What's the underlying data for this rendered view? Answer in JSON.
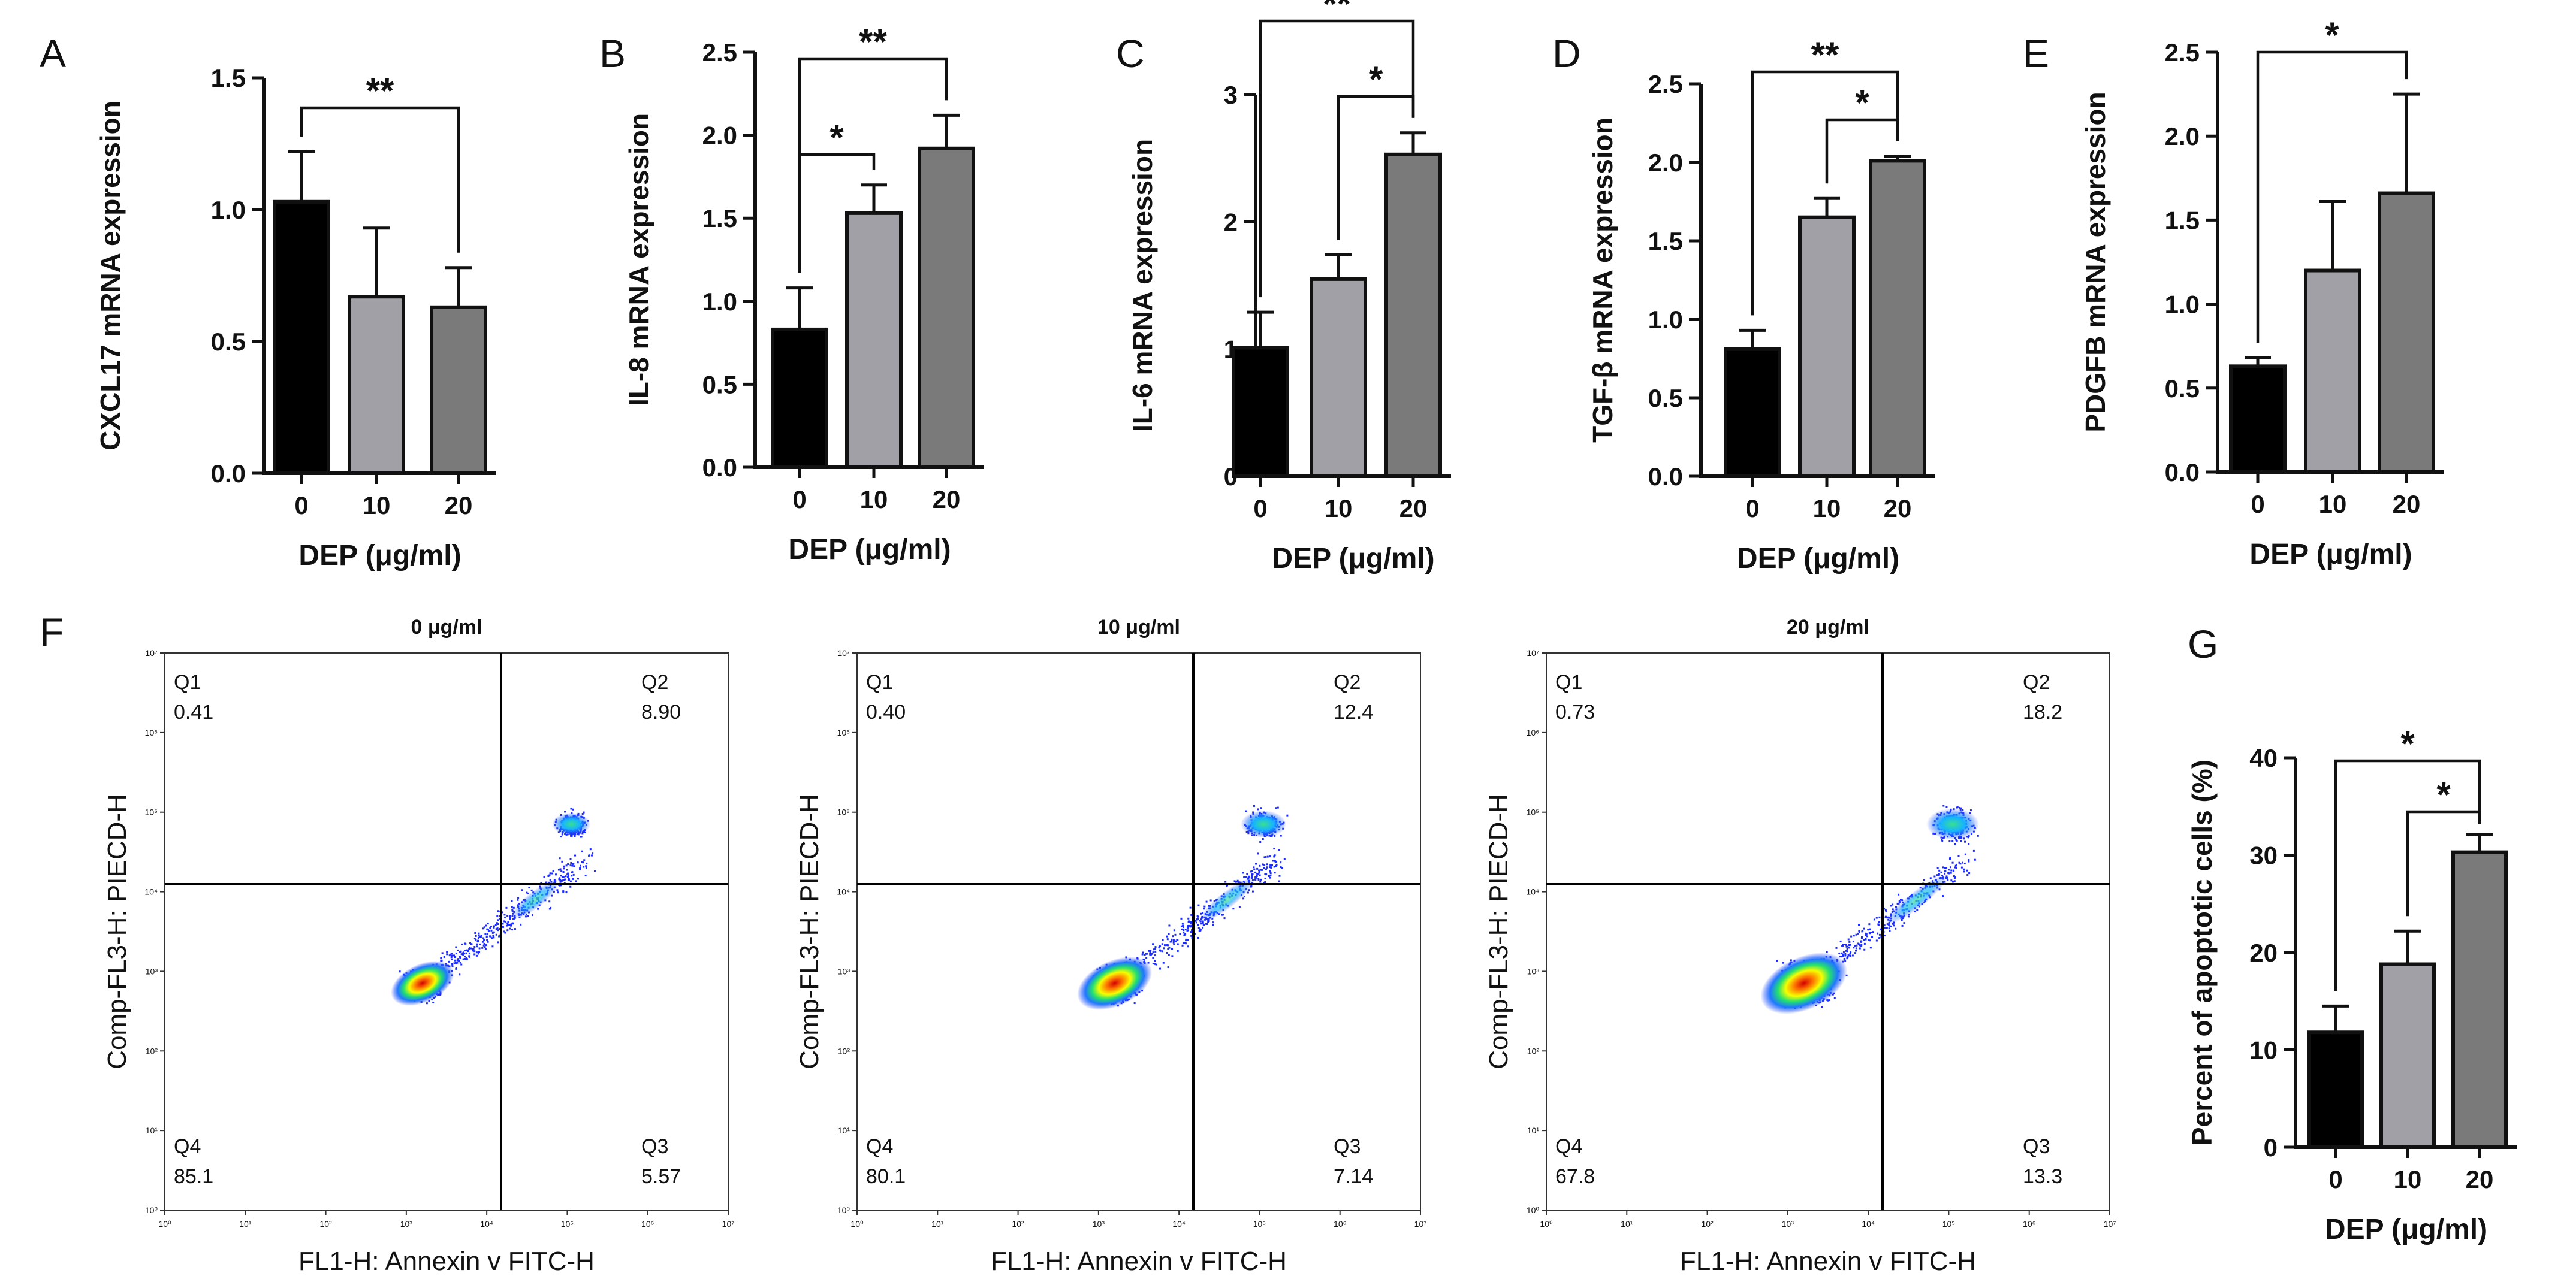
{
  "bar_style": {
    "colors": [
      "#000000",
      "#a0a0a6",
      "#7a7a7a"
    ],
    "axis_color": "#111111"
  },
  "chart_data": [
    {
      "panel": "A",
      "type": "bar",
      "categories": [
        "0",
        "10",
        "20"
      ],
      "values": [
        1.03,
        0.67,
        0.63
      ],
      "errors": [
        0.19,
        0.26,
        0.15
      ],
      "ylabel": "CXCL17 mRNA expression",
      "xlabel": "DEP (μg/ml)",
      "ylim": [
        0,
        1.5
      ],
      "yticks": [
        "0.0",
        "0.5",
        "1.0",
        "1.5"
      ],
      "significance": [
        {
          "from": 0,
          "to": 2,
          "label": "**"
        }
      ]
    },
    {
      "panel": "B",
      "type": "bar",
      "categories": [
        "0",
        "10",
        "20"
      ],
      "values": [
        0.83,
        1.53,
        1.92
      ],
      "errors": [
        0.25,
        0.17,
        0.2
      ],
      "ylabel": "IL-8 mRNA expression",
      "xlabel": "DEP (μg/ml)",
      "ylim": [
        0,
        2.5
      ],
      "yticks": [
        "0.0",
        "0.5",
        "1.0",
        "1.5",
        "2.0",
        "2.5"
      ],
      "significance": [
        {
          "from": 0,
          "to": 1,
          "label": "*"
        },
        {
          "from": 0,
          "to": 2,
          "label": "**"
        }
      ]
    },
    {
      "panel": "C",
      "type": "bar",
      "categories": [
        "0",
        "10",
        "20"
      ],
      "values": [
        1.01,
        1.55,
        2.53
      ],
      "errors": [
        0.28,
        0.19,
        0.17
      ],
      "ylabel": "IL-6 mRNA expression",
      "xlabel": "DEP (μg/ml)",
      "ylim": [
        0,
        3
      ],
      "yticks": [
        "0",
        "1",
        "2",
        "3"
      ],
      "significance": [
        {
          "from": 1,
          "to": 2,
          "label": "*"
        },
        {
          "from": 0,
          "to": 2,
          "label": "**"
        }
      ]
    },
    {
      "panel": "D",
      "type": "bar",
      "categories": [
        "0",
        "10",
        "20"
      ],
      "values": [
        0.81,
        1.65,
        2.01
      ],
      "errors": [
        0.12,
        0.12,
        0.03
      ],
      "ylabel": "TGF-β mRNA expression",
      "xlabel": "DEP (μg/ml)",
      "ylim": [
        0,
        2.5
      ],
      "yticks": [
        "0.0",
        "0.5",
        "1.0",
        "1.5",
        "2.0",
        "2.5"
      ],
      "significance": [
        {
          "from": 1,
          "to": 2,
          "label": "*"
        },
        {
          "from": 0,
          "to": 2,
          "label": "**"
        }
      ]
    },
    {
      "panel": "E",
      "type": "bar",
      "categories": [
        "0",
        "10",
        "20"
      ],
      "values": [
        0.63,
        1.2,
        1.66
      ],
      "errors": [
        0.05,
        0.41,
        0.59
      ],
      "ylabel": "PDGFB mRNA expression",
      "xlabel": "DEP (μg/ml)",
      "ylim": [
        0,
        2.5
      ],
      "yticks": [
        "0.0",
        "0.5",
        "1.0",
        "1.5",
        "2.0",
        "2.5"
      ],
      "significance": [
        {
          "from": 0,
          "to": 2,
          "label": "*"
        }
      ]
    },
    {
      "panel": "F",
      "type": "scatter",
      "plots": [
        {
          "title": "0 μg/ml",
          "quadrants": {
            "Q1": "0.41",
            "Q2": "8.90",
            "Q3": "5.57",
            "Q4": "85.1"
          }
        },
        {
          "title": "10 μg/ml",
          "quadrants": {
            "Q1": "0.40",
            "Q2": "12.4",
            "Q3": "7.14",
            "Q4": "80.1"
          }
        },
        {
          "title": "20 μg/ml",
          "quadrants": {
            "Q1": "0.73",
            "Q2": "18.2",
            "Q3": "13.3",
            "Q4": "67.8"
          }
        }
      ],
      "ylabel": "Comp-FL3-H: PIECD-H",
      "xlabel": "FL1-H: Annexin v FITC-H",
      "xlim": [
        1,
        10000000
      ],
      "ylim": [
        1,
        10000000
      ],
      "log_scale": true,
      "ticks": [
        "10⁰",
        "10¹",
        "10²",
        "10³",
        "10⁴",
        "10⁵",
        "10⁶",
        "10⁷"
      ]
    },
    {
      "panel": "G",
      "type": "bar",
      "categories": [
        "0",
        "10",
        "20"
      ],
      "values": [
        11.8,
        18.8,
        30.3
      ],
      "errors": [
        2.7,
        3.4,
        1.8
      ],
      "ylabel": "Percent of apoptotic cells (%)",
      "xlabel": "DEP (μg/ml)",
      "ylim": [
        0,
        40
      ],
      "yticks": [
        "0",
        "10",
        "20",
        "30",
        "40"
      ],
      "significance": [
        {
          "from": 1,
          "to": 2,
          "label": "*"
        },
        {
          "from": 0,
          "to": 2,
          "label": "*"
        }
      ]
    }
  ]
}
